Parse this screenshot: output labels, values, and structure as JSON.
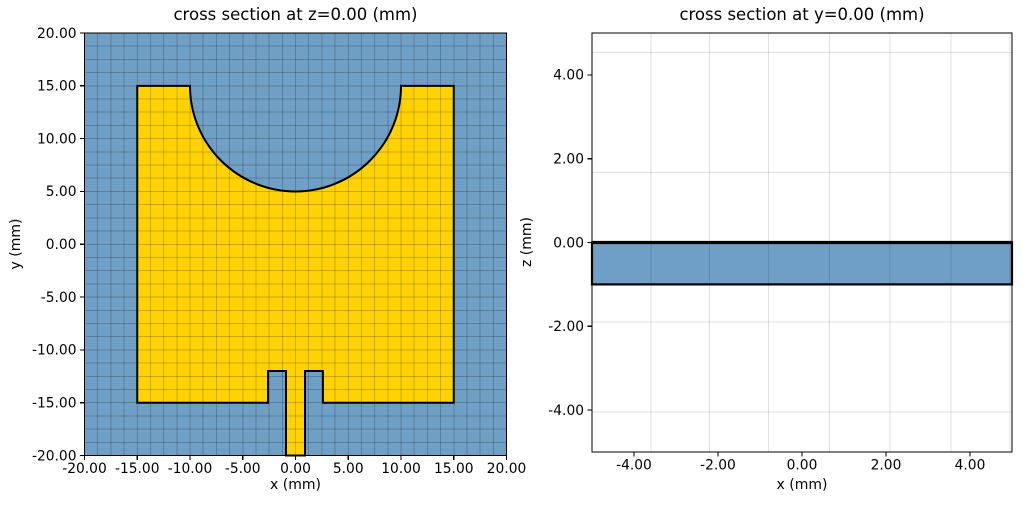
{
  "figure": {
    "background": "#ffffff",
    "description": "FDTD mesh cross sections of an inset-fed patch antenna with circular notch"
  },
  "chart_data": [
    {
      "type": "area",
      "subtype": "geometry_cross_section",
      "title": "cross section at z=0.00 (mm)",
      "xlabel": "x (mm)",
      "ylabel": "y (mm)",
      "xlim": [
        -20,
        20
      ],
      "ylim": [
        -20,
        20
      ],
      "aspect": "equal",
      "grid": true,
      "legend": "none",
      "xticks": {
        "values": [
          -20,
          -15,
          -10,
          -5,
          0,
          5,
          10,
          15,
          20
        ],
        "labels": [
          "-20.00",
          "-15.00",
          "-10.00",
          "-5.00",
          "0.00",
          "5.00",
          "10.00",
          "15.00",
          "20.00"
        ]
      },
      "yticks": {
        "values": [
          -20,
          -15,
          -10,
          -5,
          0,
          5,
          10,
          15,
          20
        ],
        "labels": [
          "-20.00",
          "-15.00",
          "-10.00",
          "-5.00",
          "0.00",
          "5.00",
          "10.00",
          "15.00",
          "20.00"
        ]
      },
      "mesh_lines_x": [
        -18.75,
        -17.5,
        -16.25,
        -15,
        -13.75,
        -12.5,
        -11.25,
        -10,
        -8.75,
        -7.5,
        -6.25,
        -5,
        -3.75,
        -2.5,
        -1.25,
        0,
        1.25,
        2.5,
        3.75,
        5,
        6.25,
        7.5,
        8.75,
        10,
        11.25,
        12.5,
        13.75,
        15,
        16.25,
        17.5,
        18.75
      ],
      "mesh_lines_y": [
        -18.75,
        -17.5,
        -16.25,
        -15,
        -13.75,
        -12.5,
        -11.25,
        -10,
        -8.75,
        -7.5,
        -6.25,
        -5,
        -3.75,
        -2.5,
        -1.25,
        0,
        1.25,
        2.5,
        3.75,
        5,
        6.25,
        7.5,
        8.75,
        10,
        11.25,
        12.5,
        13.75,
        15,
        16.25,
        17.5,
        18.75
      ],
      "colors": {
        "substrate": "#6f9fc4",
        "metal": "#ffd303",
        "outline": "#000000",
        "mesh": "rgba(0,0,0,0.20)"
      },
      "regions": [
        {
          "name": "substrate-fill",
          "kind": "background",
          "fill": "substrate"
        },
        {
          "name": "patch-metal",
          "kind": "path",
          "fill": "metal",
          "stroke": "outline",
          "stroke_width": 2,
          "path": [
            [
              "M",
              -15,
              -15
            ],
            [
              "L",
              -15,
              15
            ],
            [
              "L",
              -10,
              15
            ],
            [
              "A",
              10,
              10,
              15,
              0
            ],
            [
              "L",
              15,
              15
            ],
            [
              "L",
              15,
              -15
            ],
            [
              "L",
              2.6,
              -15
            ],
            [
              "L",
              2.6,
              -12
            ],
            [
              "L",
              0.9,
              -12
            ],
            [
              "L",
              0.9,
              -20
            ],
            [
              "L",
              -0.9,
              -20
            ],
            [
              "L",
              -0.9,
              -12
            ],
            [
              "L",
              -2.6,
              -12
            ],
            [
              "L",
              -2.6,
              -15
            ],
            [
              "Z"
            ]
          ]
        }
      ],
      "geometry_mm": {
        "patch": {
          "x_range": [
            -15,
            15
          ],
          "y_range": [
            -15,
            15
          ]
        },
        "circular_notch": {
          "center": [
            0,
            15
          ],
          "radius": 10
        },
        "inset_slots": [
          {
            "x_range": [
              -2.6,
              -0.9
            ],
            "y_range": [
              -15,
              -12
            ]
          },
          {
            "x_range": [
              0.9,
              2.6
            ],
            "y_range": [
              -15,
              -12
            ]
          }
        ],
        "feed_line": {
          "x_range": [
            -0.9,
            0.9
          ],
          "y_range": [
            -20,
            -12
          ]
        }
      }
    },
    {
      "type": "area",
      "subtype": "geometry_cross_section",
      "title": "cross section at y=0.00 (mm)",
      "xlabel": "x (mm)",
      "ylabel": "z (mm)",
      "xlim": [
        -5,
        5
      ],
      "ylim": [
        -5,
        5
      ],
      "grid": true,
      "legend": "none",
      "xticks": {
        "values": [
          -4,
          -2,
          0,
          2,
          4
        ],
        "labels": [
          "-4.00",
          "-2.00",
          "0.00",
          "2.00",
          "4.00"
        ]
      },
      "yticks": {
        "values": [
          -4,
          -2,
          0,
          2,
          4
        ],
        "labels": [
          "-4.00",
          "-2.00",
          "0.00",
          "2.00",
          "4.00"
        ]
      },
      "mesh_lines_x": [
        -3.6,
        -2.2,
        -0.8,
        0.65,
        2.1,
        3.55,
        4.95
      ],
      "mesh_lines_y": [
        4.54,
        1.67,
        -1.9,
        -4.05
      ],
      "colors": {
        "substrate": "#6f9fc4",
        "metal": "#ffd303",
        "outline": "#000000",
        "mesh": "rgba(0,0,0,0.12)"
      },
      "regions": [
        {
          "name": "substrate-band",
          "kind": "rect",
          "fill": "substrate",
          "stroke": "outline",
          "stroke_width": 2.2,
          "x": [
            -5,
            5
          ],
          "y": [
            -1,
            0
          ]
        },
        {
          "name": "patch-metal-edge",
          "kind": "hline",
          "stroke": "outline",
          "stroke_width": 3.2,
          "y": 0
        }
      ],
      "geometry_mm": {
        "substrate": {
          "x_range": [
            -5,
            5
          ],
          "z_range": [
            -1,
            0
          ]
        },
        "metal_sheet_z": 0
      }
    }
  ]
}
